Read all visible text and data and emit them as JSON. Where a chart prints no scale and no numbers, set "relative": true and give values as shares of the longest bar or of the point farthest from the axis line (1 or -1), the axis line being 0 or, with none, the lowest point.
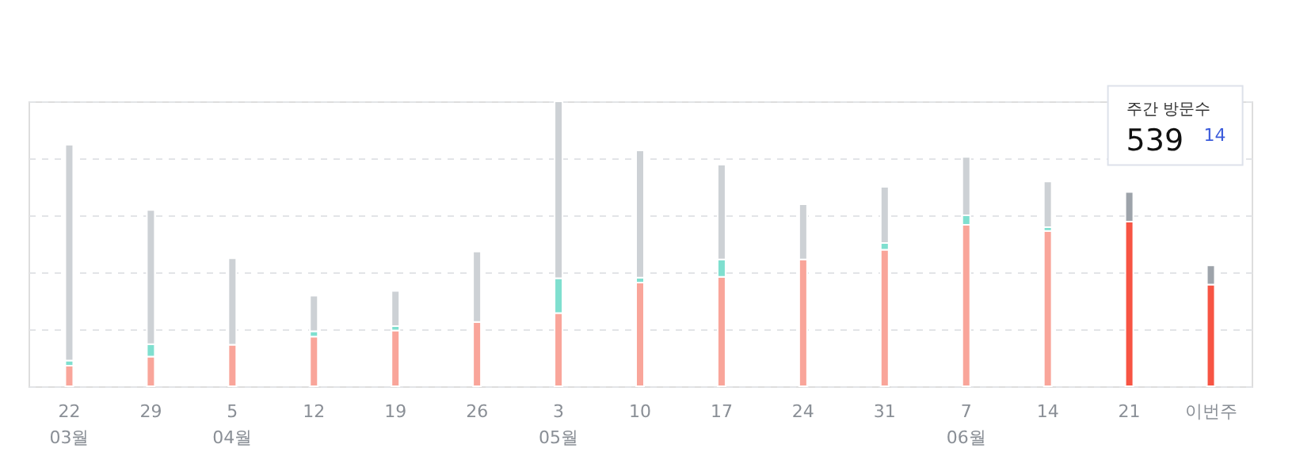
{
  "chart_data": {
    "type": "bar",
    "relative": true,
    "stacked": true,
    "grid": "y",
    "categories": [
      "22",
      "29",
      "5",
      "12",
      "19",
      "26",
      "3",
      "10",
      "17",
      "24",
      "31",
      "7",
      "14",
      "21",
      "이번주"
    ],
    "series": [
      {
        "colors": [
          "#f9a59a",
          "#f9a59a",
          "#f9a59a",
          "#f9a59a",
          "#f9a59a",
          "#f9a59a",
          "#f9a59a",
          "#f9a59a",
          "#f9a59a",
          "#f9a59a",
          "#f9a59a",
          "#f9a59a",
          "#f9a59a",
          "#f75443",
          "#f75443"
        ],
        "values": [
          0.072,
          0.104,
          0.146,
          0.174,
          0.196,
          0.226,
          0.257,
          0.364,
          0.384,
          0.445,
          0.479,
          0.567,
          0.545,
          0.578,
          0.357
        ]
      },
      {
        "color": "#7fdfcf",
        "values": [
          0.018,
          0.044,
          0,
          0.019,
          0.015,
          0,
          0.122,
          0.017,
          0.061,
          0,
          0.024,
          0.033,
          0.013,
          0,
          0
        ]
      },
      {
        "colors": [
          "#cdd1d5",
          "#cdd1d5",
          "#cdd1d5",
          "#cdd1d5",
          "#cdd1d5",
          "#cdd1d5",
          "#cdd1d5",
          "#cdd1d5",
          "#cdd1d5",
          "#cdd1d5",
          "#cdd1d5",
          "#cdd1d5",
          "#cdd1d5",
          "#9da3aa",
          "#9da3aa"
        ],
        "values": [
          0.758,
          0.471,
          0.303,
          0.125,
          0.124,
          0.247,
          0.621,
          0.447,
          0.333,
          0.194,
          0.197,
          0.205,
          0.161,
          0.104,
          0.067
        ]
      }
    ],
    "annotations": [
      "03월",
      "04월",
      "05월",
      "06월",
      "주간 방문수",
      "539",
      "14"
    ]
  }
}
